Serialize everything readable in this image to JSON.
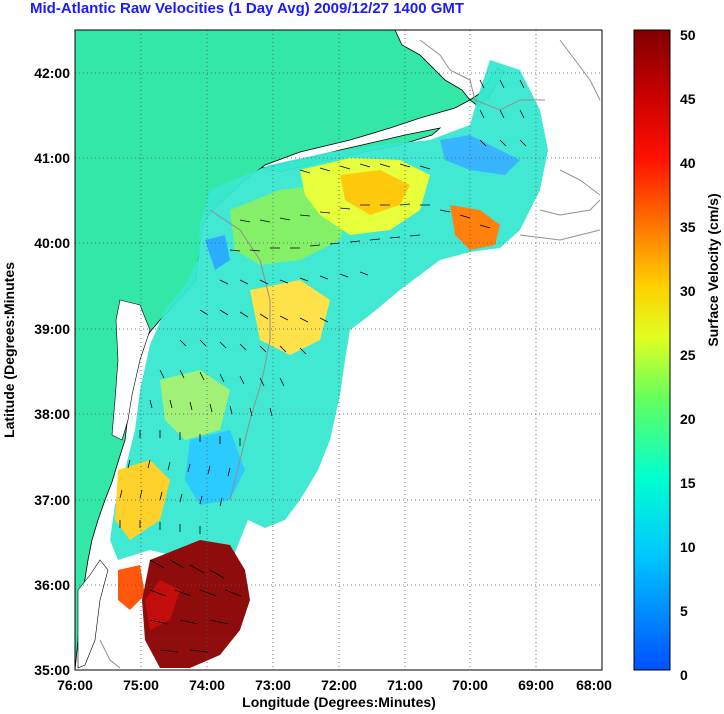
{
  "title": "Mid-Atlantic Raw Velocities (1 Day Avg) 2009/12/27 1400 GMT",
  "map": {
    "xlabel": "Longitude (Degrees:Minutes)",
    "ylabel": "Latitude (Degrees:Minutes",
    "x_ticks": [
      "76:00",
      "75:00",
      "74:00",
      "73:00",
      "72:00",
      "71:00",
      "70:00",
      "69:00",
      "68:00"
    ],
    "y_ticks": [
      "35:00",
      "36:00",
      "37:00",
      "38:00",
      "39:00",
      "40:00",
      "41:00",
      "42:00"
    ],
    "lon_range": [
      -76,
      -68
    ],
    "lat_range": [
      35,
      42.5
    ],
    "land_color": "#33e8a6",
    "water_color": "#ffffff",
    "grid": true
  },
  "colorbar": {
    "label": "Surface Velocity (cm/s)",
    "ticks": [
      "0",
      "5",
      "10",
      "15",
      "20",
      "25",
      "30",
      "35",
      "40",
      "45",
      "50"
    ],
    "range": [
      0,
      50
    ],
    "colors": [
      "#0050ff",
      "#00c8ff",
      "#00ffd0",
      "#60ff60",
      "#e0ff20",
      "#ffd000",
      "#ff7000",
      "#ff1000",
      "#c80000",
      "#800000"
    ]
  }
}
